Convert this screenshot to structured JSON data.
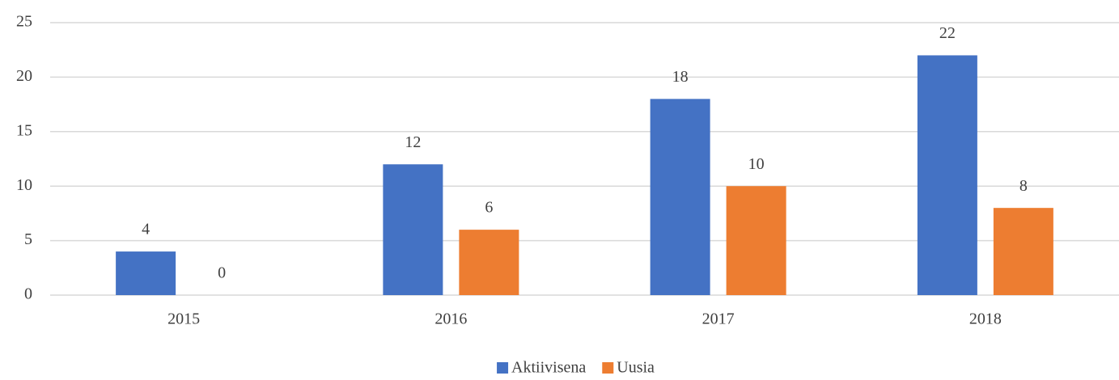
{
  "chart_data": {
    "type": "bar",
    "categories": [
      "2015",
      "2016",
      "2017",
      "2018"
    ],
    "series": [
      {
        "name": "Aktiivisena",
        "color": "#4472c4",
        "values": [
          4,
          12,
          18,
          22
        ]
      },
      {
        "name": "Uusia",
        "color": "#ed7d31",
        "values": [
          0,
          6,
          10,
          8
        ]
      }
    ],
    "ylim": [
      0,
      25
    ],
    "yticks": [
      0,
      5,
      10,
      15,
      20,
      25
    ],
    "grid": true,
    "legend": "bottom"
  }
}
